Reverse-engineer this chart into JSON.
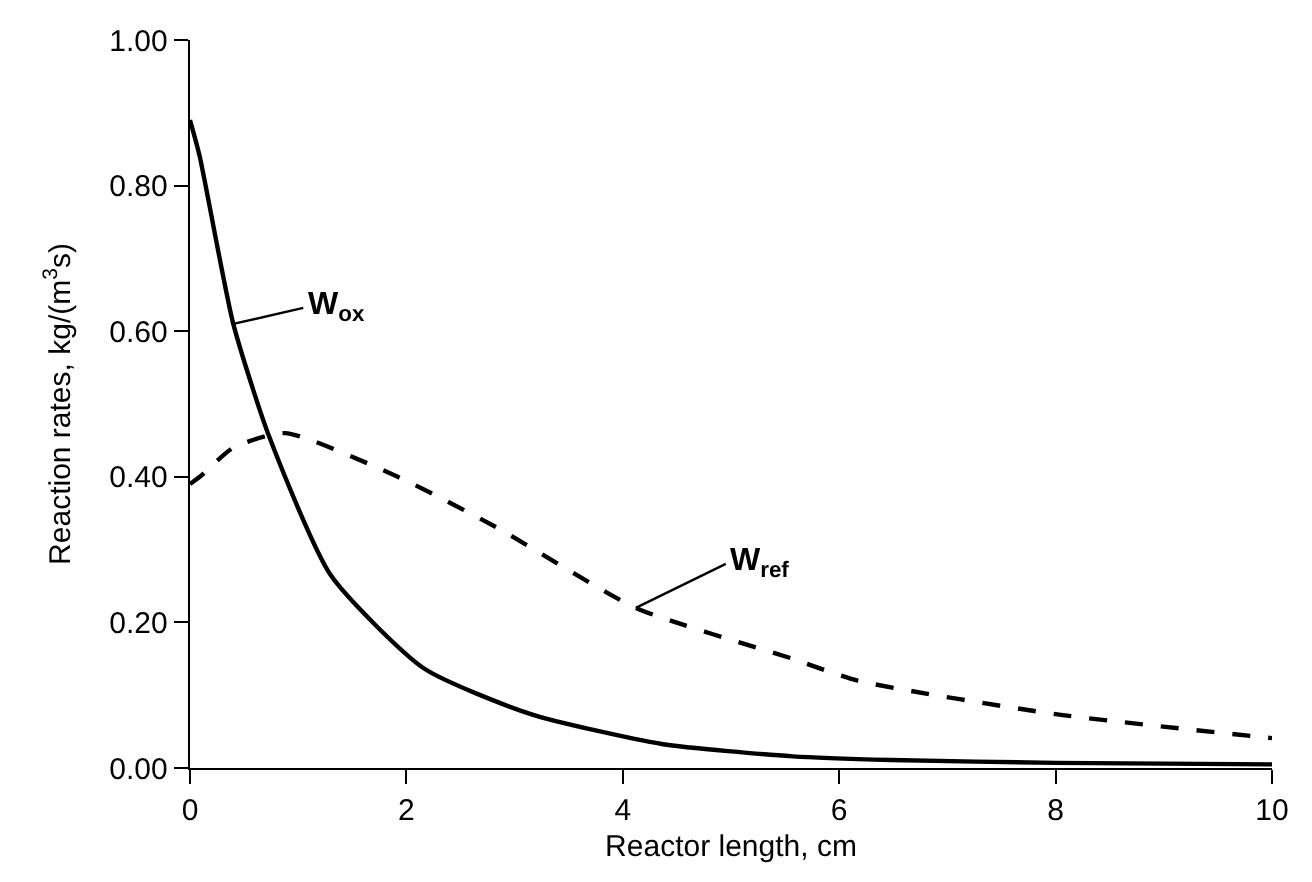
{
  "chart_data": {
    "type": "line",
    "xlabel": "Reactor length, cm",
    "ylabel": "Reaction rates, kg/(m$^{3}$s)",
    "xlim": [
      0,
      10
    ],
    "xticks": [
      0,
      2,
      4,
      6,
      8,
      10
    ],
    "ylim": [
      0,
      1
    ],
    "yticks": [
      {
        "value": 0,
        "label": "0.00"
      },
      {
        "value": 0.2,
        "label": "0.20"
      },
      {
        "value": 0.4,
        "label": "0.40"
      },
      {
        "value": 0.6,
        "label": "0.60"
      },
      {
        "value": 0.8,
        "label": "0.80"
      },
      {
        "value": 1,
        "label": "1.00"
      }
    ],
    "series": [
      {
        "color": "#000000",
        "line_style": "solid",
        "x": [
          0,
          0.09,
          0.4,
          0.73,
          1.3,
          2.16,
          3.15,
          4.36,
          5.57,
          6.48,
          8,
          10
        ],
        "values": [
          0.89,
          0.84,
          0.61,
          0.456,
          0.265,
          0.137,
          0.074,
          0.033,
          0.016,
          0.011,
          0.007,
          0.005
        ]
      },
      {
        "color": "#000000",
        "line_style": "dashed",
        "x": [
          0,
          0.09,
          0.4,
          0.88,
          1.92,
          2.84,
          4.12,
          5.57,
          6.17,
          8,
          10
        ],
        "values": [
          0.39,
          0.4,
          0.44,
          0.46,
          0.4,
          0.33,
          0.22,
          0.15,
          0.12,
          0.074,
          0.041
        ]
      }
    ],
    "annotations": [
      {
        "text": "W$_{ox}$",
        "x": 0.4,
        "y": 0.61
      },
      {
        "text": "W$_{ref}$",
        "x": 4.12,
        "y": 0.22
      }
    ]
  }
}
